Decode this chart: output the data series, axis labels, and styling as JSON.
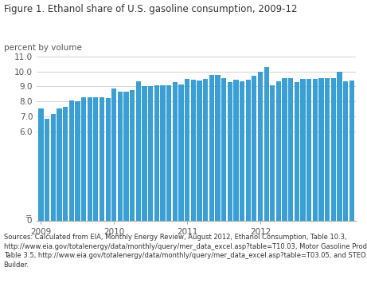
{
  "title": "Figure 1. Ethanol share of U.S. gasoline consumption, 2009-12",
  "ylabel": "percent by volume",
  "bar_color": "#3a9fd5",
  "background_color": "#ffffff",
  "ylim": [
    0,
    11.0
  ],
  "yticks": [
    6.0,
    7.0,
    8.0,
    9.0,
    10.0,
    11.0
  ],
  "ytick_labels": [
    "6.0",
    "7.0",
    "8.0",
    "9.0",
    "10.0",
    "11.0"
  ],
  "xtick_positions": [
    0,
    12,
    24,
    36
  ],
  "xtick_labels": [
    "2009",
    "2010",
    "2011",
    "2012"
  ],
  "values": [
    7.55,
    6.83,
    7.18,
    7.52,
    7.62,
    8.08,
    8.01,
    8.27,
    8.28,
    8.28,
    8.25,
    8.22,
    8.87,
    8.67,
    8.67,
    8.77,
    9.35,
    9.01,
    9.05,
    9.08,
    9.08,
    9.08,
    9.31,
    9.15,
    9.52,
    9.43,
    9.42,
    9.48,
    9.75,
    9.75,
    9.56,
    9.27,
    9.43,
    9.35,
    9.43,
    9.73,
    10.0,
    10.3,
    9.07,
    9.35,
    9.57,
    9.58,
    9.3,
    9.48,
    9.52,
    9.52,
    9.55,
    9.55,
    9.55,
    10.0,
    9.35,
    9.42
  ],
  "source_line1": "Sources: Calculated from EIA, ",
  "source_italic": "Monthly Energy Review",
  "source_line1b": ", August 2012, Ethanol Consumption, Table 10.3,",
  "source_url1": "http://www.eia.gov/totalenergy/data/monthly/query/mer_data_excel.asp?table=T10.03",
  "source_line2b": ", Motor Gasoline Product Supplied,",
  "source_line3": "Table 3.5, ",
  "source_url2": "http://www.eia.gov/totalenergy/data/monthly/query/mer_data_excel.asp?table=T03.05",
  "source_line3b": ", and STEO Custom Table Builder.",
  "title_fontsize": 8.5,
  "tick_fontsize": 7.5,
  "source_fontsize": 6.0,
  "grid_color": "#cccccc",
  "title_color": "#333333",
  "tick_color": "#555555",
  "source_color": "#333333",
  "link_color": "#1155cc"
}
